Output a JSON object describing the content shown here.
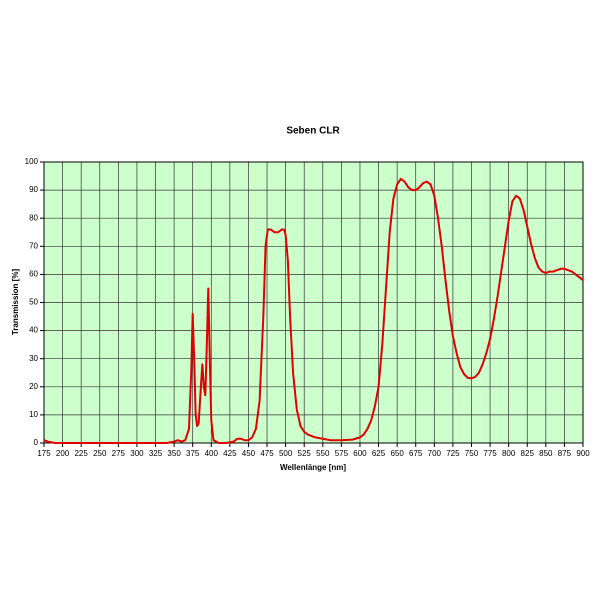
{
  "chart_data": {
    "type": "line",
    "title": "Seben CLR",
    "x_label": "Wellenlänge [nm]",
    "y_label": "Transmission [%]",
    "x": [
      175,
      180,
      190,
      250,
      300,
      340,
      350,
      355,
      360,
      365,
      370,
      373,
      375,
      377,
      379,
      381,
      383,
      386,
      388,
      390,
      392,
      394,
      396,
      398,
      400,
      403,
      410,
      420,
      430,
      435,
      440,
      445,
      450,
      455,
      460,
      465,
      470,
      473,
      476,
      480,
      485,
      490,
      495,
      498,
      500,
      503,
      506,
      510,
      515,
      520,
      525,
      530,
      540,
      550,
      560,
      575,
      590,
      600,
      605,
      610,
      615,
      620,
      625,
      630,
      635,
      640,
      645,
      650,
      655,
      660,
      665,
      670,
      675,
      680,
      685,
      690,
      695,
      700,
      705,
      710,
      715,
      720,
      725,
      730,
      735,
      740,
      745,
      750,
      755,
      760,
      765,
      770,
      775,
      780,
      785,
      790,
      795,
      800,
      805,
      810,
      815,
      820,
      825,
      830,
      835,
      840,
      845,
      850,
      855,
      860,
      865,
      870,
      875,
      880,
      885,
      890,
      895,
      900
    ],
    "series": [
      {
        "name": "Transmission",
        "color": "#e00000",
        "values": [
          1,
          0.5,
          0,
          0,
          0,
          0,
          0.5,
          1,
          0.5,
          1,
          5,
          25,
          46,
          30,
          10,
          6,
          7,
          20,
          28,
          20,
          17,
          35,
          55,
          30,
          8,
          1,
          0,
          0,
          0.5,
          1.5,
          1.5,
          1,
          1,
          2,
          5,
          15,
          45,
          70,
          76,
          76,
          75,
          75,
          76,
          76,
          74,
          65,
          45,
          25,
          12,
          6,
          4,
          3,
          2,
          1.5,
          1,
          1,
          1.2,
          2,
          3,
          5,
          8,
          13,
          20,
          35,
          55,
          75,
          87,
          92,
          94,
          93,
          91,
          90,
          90,
          91,
          92.5,
          93,
          92,
          88,
          80,
          70,
          58,
          47,
          38,
          32,
          27,
          24.5,
          23.2,
          23,
          23.5,
          25,
          28,
          32,
          37,
          44,
          52,
          61,
          70,
          79,
          86,
          88,
          87,
          83,
          77,
          71,
          66,
          62.5,
          61,
          60.5,
          61,
          61,
          61.5,
          62,
          62,
          61.5,
          61,
          60,
          59,
          58
        ]
      }
    ],
    "xlim": [
      175,
      900
    ],
    "xticks": [
      175,
      200,
      225,
      250,
      275,
      300,
      325,
      350,
      375,
      400,
      425,
      450,
      475,
      500,
      525,
      550,
      575,
      600,
      625,
      650,
      675,
      700,
      725,
      750,
      775,
      800,
      825,
      850,
      875,
      900
    ],
    "ylim": [
      0,
      100
    ],
    "yticks": [
      0,
      10,
      20,
      30,
      40,
      50,
      60,
      70,
      80,
      90,
      100
    ],
    "grid": true
  }
}
